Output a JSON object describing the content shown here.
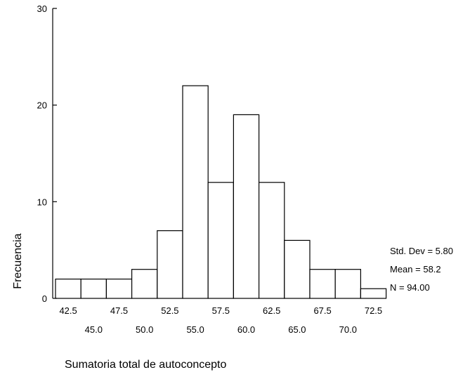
{
  "chart_data": {
    "type": "bar",
    "title": "",
    "xlabel": "Sumatoria total de autoconcepto",
    "ylabel": "Frecuencia",
    "ylim": [
      0,
      30
    ],
    "y_ticks": [
      "0",
      "10",
      "20",
      "30"
    ],
    "categories": [
      "42.5",
      "45.0",
      "47.5",
      "50.0",
      "52.5",
      "55.0",
      "57.5",
      "60.0",
      "62.5",
      "65.0",
      "67.5",
      "70.0",
      "72.5"
    ],
    "values": [
      2,
      2,
      2,
      3,
      7,
      22,
      12,
      19,
      12,
      6,
      3,
      3,
      1
    ],
    "bin_width": 2.5,
    "grid": false,
    "stats": {
      "std_dev": "Std. Dev = 5.80",
      "mean": "Mean = 58.2",
      "n": "N = 94.00"
    },
    "colors": {
      "bar_fill": "#ffffff",
      "bar_stroke": "#000000"
    }
  }
}
